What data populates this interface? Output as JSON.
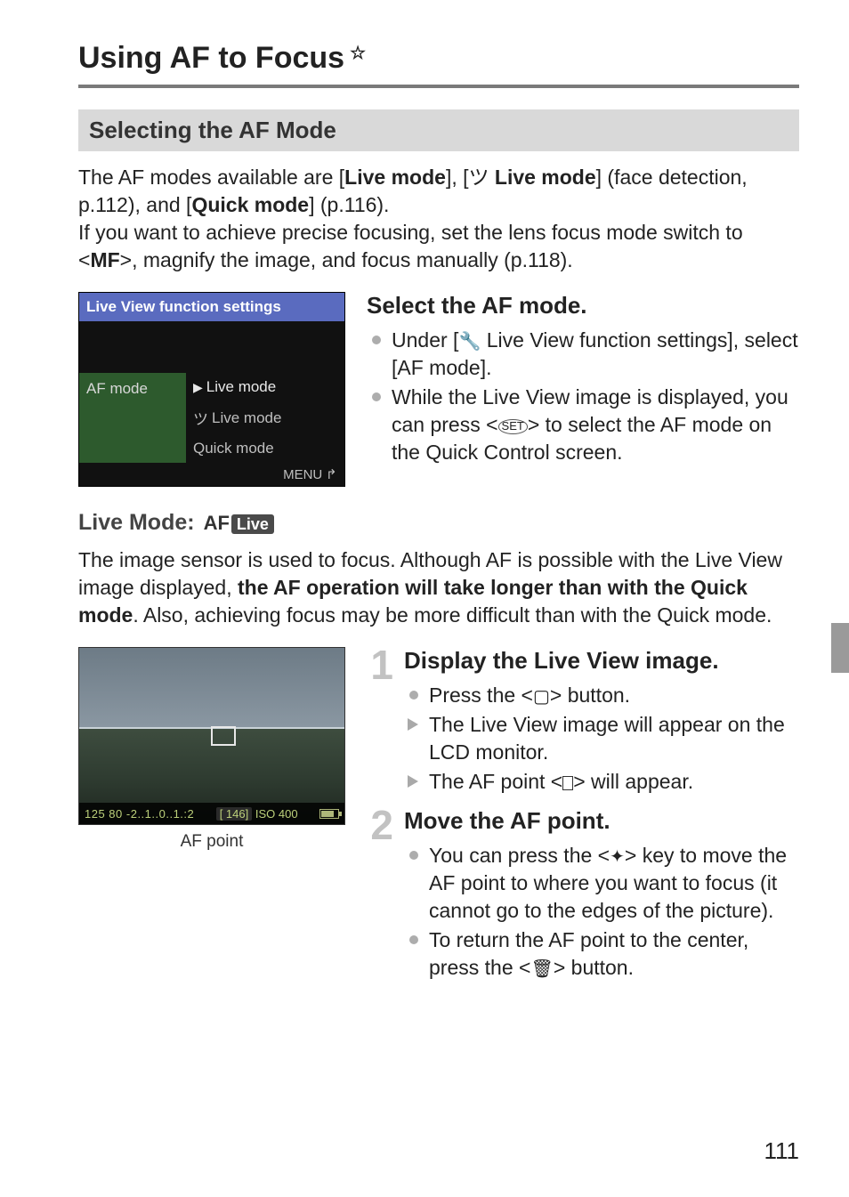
{
  "title": {
    "text": "Using AF to Focus",
    "star": "☆"
  },
  "section1": {
    "heading": "Selecting the AF Mode"
  },
  "intro": {
    "l1a": "The AF modes available are [",
    "l1b": "Live mode",
    "l1c": "], [",
    "l1d": " Live mode",
    "l1e": "] (face detection, p.112), and [",
    "l1f": "Quick mode",
    "l1g": "] (p.116).",
    "l2a": "If you want to achieve precise focusing, set the lens focus mode switch to <",
    "l2b": "MF",
    "l2c": ">, magnify the image, and focus manually (p.118)."
  },
  "menu": {
    "header": "Live View function settings",
    "row_label": "AF mode",
    "opt1": "Live mode",
    "opt2": " Live mode",
    "opt3": "Quick mode",
    "footer": "MENU"
  },
  "select_step": {
    "heading": "Select the AF mode.",
    "b1a": "Under [",
    "b1b": " Live View function settings",
    "b1c": "], select [",
    "b1d": "AF mode",
    "b1e": "].",
    "b2a": "While the Live View image is displayed, you can press <",
    "b2b": "> to select the AF mode on the Quick Control screen."
  },
  "live_sub": {
    "label": "Live Mode:",
    "badge_pre": "AF",
    "badge_box": "Live"
  },
  "live_para": {
    "a": "The image sensor is used to focus. Although AF is possible with the Live View image displayed, ",
    "b": "the AF operation will take longer than with the Quick mode",
    "c": ". Also, achieving focus may be more difficult than with the Quick mode."
  },
  "lv_osd": {
    "left": "125  80",
    "scale": "-2..1..0..1.:2",
    "mid": "[  146]",
    "iso": "ISO 400"
  },
  "caption": "AF point",
  "step1": {
    "num": "1",
    "heading": "Display the Live View image.",
    "b1": "Press the <",
    "b1end": "> button.",
    "t1": "The Live View image will appear on the LCD monitor.",
    "t2a": "The AF point <",
    "t2b": "> will appear."
  },
  "step2": {
    "num": "2",
    "heading": "Move the AF point.",
    "b1a": "You can press the <",
    "b1b": "> key to move the AF point to where you want to focus (it cannot go to the edges of the picture).",
    "b2a": "To return the AF point to the center, press the <",
    "b2b": "> button."
  },
  "page_number": "111"
}
